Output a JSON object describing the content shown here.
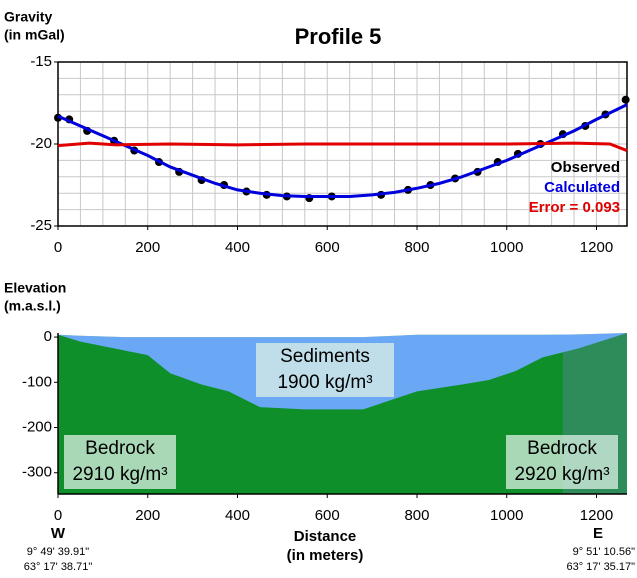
{
  "chart_data": [
    {
      "type": "line",
      "title": "Profile 5",
      "ylabel": [
        "Gravity",
        "(in mGal)"
      ],
      "xlim": [
        0,
        1268
      ],
      "ylim": [
        -25,
        -15
      ],
      "xticks": [
        0,
        200,
        400,
        600,
        800,
        1000,
        1200
      ],
      "yticks": [
        -25,
        -20,
        -15
      ],
      "grid": true,
      "grid_step": [
        50,
        1
      ],
      "series": [
        {
          "name": "Observed",
          "color": "#000000",
          "marker": true,
          "line": false,
          "x": [
            0,
            25,
            65,
            125,
            170,
            225,
            270,
            320,
            370,
            420,
            465,
            510,
            560,
            610,
            720,
            780,
            830,
            885,
            935,
            980,
            1025,
            1075,
            1125,
            1175,
            1220,
            1265
          ],
          "values": [
            -18.4,
            -18.5,
            -19.2,
            -19.8,
            -20.4,
            -21.1,
            -21.7,
            -22.2,
            -22.5,
            -22.9,
            -23.1,
            -23.2,
            -23.3,
            -23.2,
            -23.1,
            -22.8,
            -22.5,
            -22.1,
            -21.7,
            -21.1,
            -20.6,
            -20.0,
            -19.4,
            -18.9,
            -18.2,
            -17.3
          ]
        },
        {
          "name": "Calculated",
          "color": "#0000dd",
          "marker": false,
          "line": true,
          "x": [
            0,
            50,
            100,
            150,
            200,
            250,
            300,
            350,
            400,
            450,
            500,
            550,
            600,
            650,
            700,
            750,
            800,
            850,
            900,
            950,
            1000,
            1050,
            1100,
            1150,
            1200,
            1268
          ],
          "values": [
            -18.3,
            -18.9,
            -19.5,
            -20.1,
            -20.7,
            -21.4,
            -21.9,
            -22.4,
            -22.8,
            -23.0,
            -23.15,
            -23.2,
            -23.2,
            -23.2,
            -23.1,
            -22.95,
            -22.7,
            -22.4,
            -22.0,
            -21.5,
            -21.0,
            -20.4,
            -19.8,
            -19.2,
            -18.5,
            -17.6
          ]
        },
        {
          "name": "Error = 0.093",
          "color": "#e00000",
          "marker": false,
          "line": true,
          "x": [
            0,
            70,
            130,
            250,
            400,
            550,
            700,
            850,
            1000,
            1150,
            1230,
            1268
          ],
          "values": [
            -20.1,
            -19.95,
            -20.05,
            -20.0,
            -20.05,
            -20.0,
            -20.0,
            -20.0,
            -20.0,
            -19.95,
            -20.0,
            -20.4
          ]
        }
      ]
    },
    {
      "type": "area",
      "ylabel": [
        "Elevation",
        "(m.a.s.l.)"
      ],
      "xlabel": [
        "Distance",
        "(in meters)"
      ],
      "xlim": [
        0,
        1268
      ],
      "ylim": [
        -347,
        9
      ],
      "xticks": [
        0,
        200,
        400,
        600,
        800,
        1000,
        1200
      ],
      "yticks": [
        -300,
        -200,
        -100,
        0
      ],
      "x": [
        0,
        50,
        150,
        200,
        250,
        320,
        380,
        450,
        550,
        680,
        800,
        900,
        960,
        1020,
        1080,
        1160,
        1268
      ],
      "surface": [
        5,
        3,
        0,
        0,
        0,
        0,
        0,
        0,
        0,
        0,
        5,
        5,
        5,
        5,
        5,
        6,
        9
      ],
      "sediment_base": [
        5,
        -10,
        -30,
        -40,
        -80,
        -105,
        -120,
        -155,
        -160,
        -160,
        -120,
        -105,
        -95,
        -75,
        -45,
        -25,
        9
      ],
      "bedrock_boundary": 1125,
      "colors": {
        "sediments": "#6aa8f5",
        "bedrock": "#0e8f2a",
        "bedrock2": "#2e8c5a"
      },
      "labels": [
        [
          "Sediments",
          "1900 kg/m³"
        ],
        [
          "Bedrock",
          "2910 kg/m³"
        ],
        [
          "Bedrock",
          "2920 kg/m³"
        ]
      ],
      "ends": [
        [
          "W",
          "9° 49' 39.91\"",
          "63° 17' 38.71\""
        ],
        [
          "E",
          "9° 51' 10.56\"",
          "63° 17' 35.17\""
        ]
      ]
    }
  ]
}
